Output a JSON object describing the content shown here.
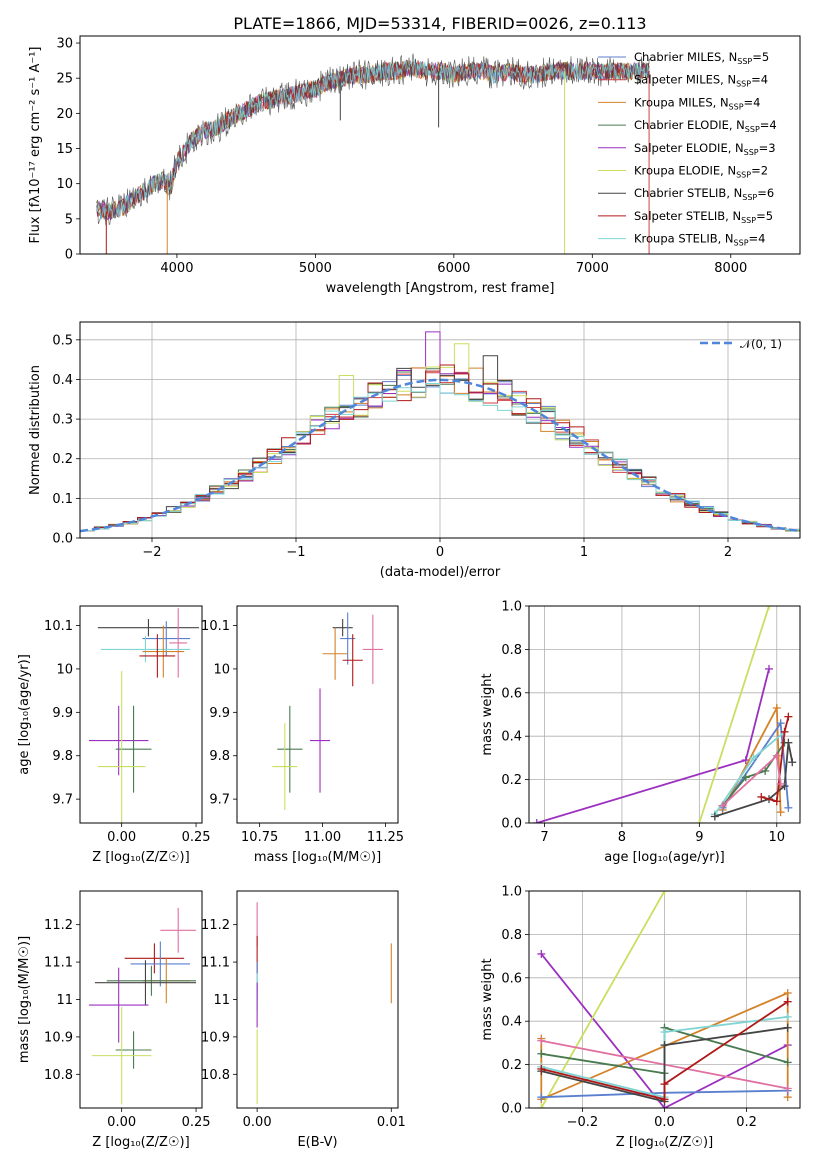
{
  "figure": {
    "title": "PLATE=1866, MJD=53314, FIBERID=0026, z=0.113"
  },
  "colors": {
    "chabrier_miles": "#5b7fcf",
    "salpeter_miles": "#d04040",
    "kroupa_miles": "#d4822a",
    "chabrier_elodie": "#4a7a50",
    "salpeter_elodie": "#9b30c0",
    "kroupa_elodie": "#c8e060",
    "chabrier_stelib": "#444444",
    "salpeter_stelib": "#b01818",
    "kroupa_stelib": "#7fd4d4",
    "pink": "#e070a0",
    "norm": "#4f86d9"
  },
  "legend_spectrum": [
    {
      "key": "chabrier_miles",
      "name": "Chabrier MILES, N",
      "sub": "SSP",
      "tail": "=5"
    },
    {
      "key": "salpeter_miles",
      "name": "Salpeter MILES, N",
      "sub": "SSP",
      "tail": "=4"
    },
    {
      "key": "kroupa_miles",
      "name": "Kroupa MILES, N",
      "sub": "SSP",
      "tail": "=4"
    },
    {
      "key": "chabrier_elodie",
      "name": "Chabrier ELODIE, N",
      "sub": "SSP",
      "tail": "=4"
    },
    {
      "key": "salpeter_elodie",
      "name": "Salpeter ELODIE, N",
      "sub": "SSP",
      "tail": "=3"
    },
    {
      "key": "kroupa_elodie",
      "name": "Kroupa ELODIE, N",
      "sub": "SSP",
      "tail": "=2"
    },
    {
      "key": "chabrier_stelib",
      "name": "Chabrier STELIB, N",
      "sub": "SSP",
      "tail": "=6"
    },
    {
      "key": "salpeter_stelib",
      "name": "Salpeter STELIB, N",
      "sub": "SSP",
      "tail": "=5"
    },
    {
      "key": "kroupa_stelib",
      "name": "Kroupa STELIB, N",
      "sub": "SSP",
      "tail": "=4"
    }
  ],
  "legend_hist": {
    "label": "𝒩(0, 1)"
  },
  "chart_data": [
    {
      "id": "spectrum",
      "type": "line",
      "xlabel": "wavelength [Angstrom, rest frame]",
      "ylabel": "Flux [fλ10⁻¹⁷ erg cm⁻² s⁻¹ A⁻¹]",
      "xlim": [
        3300,
        8500
      ],
      "ylim": [
        0,
        31
      ],
      "xticks": [
        4000,
        5000,
        6000,
        7000,
        8000
      ],
      "yticks": [
        0,
        5,
        10,
        15,
        20,
        25,
        30
      ],
      "grid": false,
      "legend": "top-right",
      "envelope": {
        "x": [
          3420,
          3500,
          3600,
          3700,
          3800,
          3900,
          3950,
          4000,
          4100,
          4200,
          4300,
          4400,
          4500,
          4600,
          4700,
          4800,
          4900,
          5000,
          5100,
          5200,
          5300,
          5400,
          5500,
          5600,
          5700,
          5800,
          5900,
          6000,
          6100,
          6200,
          6300,
          6400,
          6500,
          6600,
          6700,
          6800,
          6900,
          7000,
          7100,
          7200,
          7300,
          7400,
          7420
        ],
        "y": [
          6.5,
          6.0,
          6.5,
          8.0,
          9.5,
          10.5,
          9.5,
          13.0,
          16.0,
          17.5,
          18.0,
          19.5,
          20.5,
          21.5,
          22.0,
          22.5,
          23.0,
          23.5,
          24.5,
          25.0,
          25.5,
          25.5,
          26.0,
          26.0,
          26.5,
          26.0,
          26.0,
          25.5,
          26.0,
          26.0,
          25.5,
          26.0,
          25.5,
          25.5,
          26.0,
          26.0,
          26.0,
          26.0,
          26.0,
          26.0,
          26.0,
          26.0,
          26.0
        ]
      },
      "absorption_dips": [
        {
          "x": 3490,
          "y": 0,
          "series": "salpeter_stelib"
        },
        {
          "x": 3930,
          "y": 0,
          "series": "kroupa_miles"
        },
        {
          "x": 5180,
          "y": 19,
          "series": "chabrier_stelib"
        },
        {
          "x": 5890,
          "y": 18,
          "series": "chabrier_stelib"
        },
        {
          "x": 6800,
          "y": 0,
          "series": "kroupa_elodie"
        },
        {
          "x": 7410,
          "y": 0,
          "series": "salpeter_miles"
        }
      ]
    },
    {
      "id": "residual-histogram",
      "type": "bar",
      "xlabel": "(data-model)/error",
      "ylabel": "Normed distribution",
      "xlim": [
        -2.5,
        2.5
      ],
      "ylim": [
        0,
        0.545
      ],
      "xticks": [
        -2,
        -1,
        0,
        1,
        2
      ],
      "yticks": [
        0.0,
        0.1,
        0.2,
        0.3,
        0.4,
        0.5
      ],
      "grid": true,
      "legend": "top-right",
      "bin_width": 0.1,
      "bin_start": -2.5,
      "series": [
        {
          "key": "chabrier_miles",
          "seed": 11
        },
        {
          "key": "salpeter_miles",
          "seed": 23
        },
        {
          "key": "kroupa_miles",
          "seed": 37
        },
        {
          "key": "chabrier_elodie",
          "seed": 41
        },
        {
          "key": "salpeter_elodie",
          "seed": 53
        },
        {
          "key": "kroupa_elodie",
          "seed": 67
        },
        {
          "key": "chabrier_stelib",
          "seed": 71
        },
        {
          "key": "salpeter_stelib",
          "seed": 83
        },
        {
          "key": "kroupa_stelib",
          "seed": 97
        }
      ],
      "highlights": [
        {
          "x": -0.05,
          "y": 0.52,
          "series": "salpeter_elodie"
        },
        {
          "x": 0.15,
          "y": 0.49,
          "series": "kroupa_elodie"
        },
        {
          "x": 0.35,
          "y": 0.46,
          "series": "chabrier_stelib"
        },
        {
          "x": -0.65,
          "y": 0.41,
          "series": "kroupa_elodie"
        }
      ]
    },
    {
      "id": "age-vs-Z",
      "type": "scatter",
      "xlabel": "Z [log₁₀(Z/Z☉)]",
      "ylabel": "age  [log₁₀(age/yr)]",
      "xlim": [
        -0.14,
        0.27
      ],
      "ylim": [
        9.645,
        10.145
      ],
      "xticks": [
        0.0,
        0.25
      ],
      "xtick_labels": [
        "0.00",
        "0.25"
      ],
      "yticks": [
        9.7,
        9.8,
        9.9,
        10.0,
        10.1
      ],
      "grid": false,
      "points": [
        {
          "series": "chabrier_stelib",
          "x": 0.09,
          "y": 10.095,
          "xerr": 0.17,
          "yerr": 0.02
        },
        {
          "series": "chabrier_miles",
          "x": 0.15,
          "y": 10.07,
          "xerr": 0.08,
          "yerr": 0.04
        },
        {
          "series": "pink",
          "x": 0.19,
          "y": 10.06,
          "xerr": 0.03,
          "yerr": 0.08
        },
        {
          "series": "kroupa_stelib",
          "x": 0.08,
          "y": 10.045,
          "xerr": 0.15,
          "yerr": 0.03
        },
        {
          "series": "kroupa_miles",
          "x": 0.14,
          "y": 10.04,
          "xerr": 0.07,
          "yerr": 0.06
        },
        {
          "series": "salpeter_stelib",
          "x": 0.12,
          "y": 10.03,
          "xerr": 0.06,
          "yerr": 0.05
        },
        {
          "series": "salpeter_elodie",
          "x": -0.01,
          "y": 9.835,
          "xerr": 0.1,
          "yerr": 0.08
        },
        {
          "series": "chabrier_elodie",
          "x": 0.04,
          "y": 9.815,
          "xerr": 0.06,
          "yerr": 0.1
        },
        {
          "series": "kroupa_elodie",
          "x": 0.0,
          "y": 9.775,
          "xerr": 0.08,
          "yerr": 0.22
        }
      ]
    },
    {
      "id": "age-vs-mass",
      "type": "scatter",
      "xlabel": "mass [log₁₀(M/M☉)]",
      "ylabel": "",
      "xlim": [
        10.66,
        11.3
      ],
      "ylim": [
        9.645,
        10.145
      ],
      "xticks": [
        10.75,
        11.0,
        11.25
      ],
      "xtick_labels": [
        "10.75",
        "11.00",
        "11.25"
      ],
      "yticks": [
        9.7,
        9.8,
        9.9,
        10.0,
        10.1
      ],
      "grid": false,
      "points": [
        {
          "series": "chabrier_stelib",
          "x": 11.08,
          "y": 10.095,
          "xerr": 0.04,
          "yerr": 0.02
        },
        {
          "series": "chabrier_miles",
          "x": 11.1,
          "y": 10.07,
          "xerr": 0.03,
          "yerr": 0.06
        },
        {
          "series": "pink",
          "x": 11.2,
          "y": 10.045,
          "xerr": 0.04,
          "yerr": 0.08
        },
        {
          "series": "kroupa_miles",
          "x": 11.05,
          "y": 10.035,
          "xerr": 0.05,
          "yerr": 0.06
        },
        {
          "series": "salpeter_stelib",
          "x": 11.12,
          "y": 10.02,
          "xerr": 0.04,
          "yerr": 0.06
        },
        {
          "series": "salpeter_elodie",
          "x": 10.99,
          "y": 9.835,
          "xerr": 0.04,
          "yerr": 0.12
        },
        {
          "series": "chabrier_elodie",
          "x": 10.87,
          "y": 9.815,
          "xerr": 0.05,
          "yerr": 0.1
        },
        {
          "series": "kroupa_elodie",
          "x": 10.85,
          "y": 9.775,
          "xerr": 0.05,
          "yerr": 0.1
        }
      ]
    },
    {
      "id": "weight-vs-age",
      "type": "line",
      "xlabel": "age  [log₁₀(age/yr)]",
      "ylabel": "mass weight",
      "xlim": [
        6.8,
        10.3
      ],
      "ylim": [
        0,
        1
      ],
      "xticks": [
        7,
        8,
        9,
        10
      ],
      "yticks": [
        0.0,
        0.2,
        0.4,
        0.6,
        0.8,
        1.0
      ],
      "grid": true,
      "series": [
        {
          "key": "salpeter_elodie",
          "x": [
            6.9,
            9.6,
            9.9
          ],
          "y": [
            0.0,
            0.29,
            0.71
          ]
        },
        {
          "key": "kroupa_elodie",
          "x": [
            9.0,
            9.9
          ],
          "y": [
            0.0,
            1.0
          ]
        },
        {
          "key": "kroupa_miles",
          "x": [
            9.3,
            10.0,
            10.05
          ],
          "y": [
            0.06,
            0.53,
            0.05
          ]
        },
        {
          "key": "chabrier_miles",
          "x": [
            9.3,
            10.05,
            10.15
          ],
          "y": [
            0.07,
            0.46,
            0.07
          ]
        },
        {
          "key": "kroupa_stelib",
          "x": [
            9.2,
            9.7,
            10.1
          ],
          "y": [
            0.04,
            0.3,
            0.42
          ]
        },
        {
          "key": "chabrier_elodie",
          "x": [
            9.3,
            9.6,
            9.85,
            10.1
          ],
          "y": [
            0.08,
            0.21,
            0.24,
            0.37
          ]
        },
        {
          "key": "chabrier_stelib",
          "x": [
            9.2,
            9.9,
            10.1,
            10.15,
            10.2
          ],
          "y": [
            0.03,
            0.11,
            0.17,
            0.37,
            0.28
          ]
        },
        {
          "key": "salpeter_stelib",
          "x": [
            9.8,
            10.0,
            10.1,
            10.15
          ],
          "y": [
            0.12,
            0.1,
            0.42,
            0.49
          ]
        },
        {
          "key": "pink",
          "x": [
            9.3,
            10.0,
            10.05
          ],
          "y": [
            0.08,
            0.31,
            0.18
          ]
        }
      ]
    },
    {
      "id": "mass-vs-Z",
      "type": "scatter",
      "xlabel": "Z [log₁₀(Z/Z☉)]",
      "ylabel": "mass [log₁₀(M/M☉)]",
      "xlim": [
        -0.14,
        0.27
      ],
      "ylim": [
        10.71,
        11.29
      ],
      "xticks": [
        0.0,
        0.25
      ],
      "xtick_labels": [
        "0.00",
        "0.25"
      ],
      "yticks": [
        10.8,
        10.9,
        11.0,
        11.1,
        11.2
      ],
      "grid": false,
      "points": [
        {
          "series": "pink",
          "x": 0.19,
          "y": 11.185,
          "xerr": 0.06,
          "yerr": 0.06
        },
        {
          "series": "salpeter_stelib",
          "x": 0.11,
          "y": 11.11,
          "xerr": 0.1,
          "yerr": 0.04
        },
        {
          "series": "chabrier_miles",
          "x": 0.13,
          "y": 11.095,
          "xerr": 0.1,
          "yerr": 0.06
        },
        {
          "series": "kroupa_miles",
          "x": 0.15,
          "y": 11.05,
          "xerr": 0.08,
          "yerr": 0.06
        },
        {
          "series": "chabrier_elodie",
          "x": 0.1,
          "y": 11.05,
          "xerr": 0.15,
          "yerr": 0.04
        },
        {
          "series": "chabrier_stelib",
          "x": 0.08,
          "y": 11.045,
          "xerr": 0.17,
          "yerr": 0.06
        },
        {
          "series": "salpeter_elodie",
          "x": -0.01,
          "y": 10.985,
          "xerr": 0.1,
          "yerr": 0.1
        },
        {
          "series": "chabrier_elodie",
          "x": 0.04,
          "y": 10.865,
          "xerr": 0.06,
          "yerr": 0.05
        },
        {
          "series": "kroupa_elodie",
          "x": 0.0,
          "y": 10.85,
          "xerr": 0.1,
          "yerr": 0.13
        }
      ]
    },
    {
      "id": "mass-vs-ebv",
      "type": "scatter",
      "xlabel": "E(B-V)",
      "ylabel": "",
      "xlim": [
        -0.0015,
        0.0105
      ],
      "ylim": [
        10.71,
        11.29
      ],
      "xticks": [
        0.0,
        0.01
      ],
      "xtick_labels": [
        "0.00",
        "0.01"
      ],
      "yticks": [
        10.8,
        10.9,
        11.0,
        11.1,
        11.2
      ],
      "grid": false,
      "points": [
        {
          "series": "pink",
          "x": 0.0,
          "y": 11.2,
          "xerr": 0.0,
          "yerr": 0.06
        },
        {
          "series": "salpeter_stelib",
          "x": 0.0,
          "y": 11.12,
          "xerr": 0.0,
          "yerr": 0.05
        },
        {
          "series": "chabrier_miles",
          "x": 0.0,
          "y": 11.05,
          "xerr": 0.0,
          "yerr": 0.05
        },
        {
          "series": "kroupa_stelib",
          "x": 0.0,
          "y": 11.02,
          "xerr": 0.0,
          "yerr": 0.05
        },
        {
          "series": "salpeter_elodie",
          "x": 0.0,
          "y": 10.985,
          "xerr": 0.0,
          "yerr": 0.06
        },
        {
          "series": "kroupa_elodie",
          "x": 0.0,
          "y": 10.82,
          "xerr": 0.0,
          "yerr": 0.1
        },
        {
          "series": "kroupa_miles",
          "x": 0.01,
          "y": 11.07,
          "xerr": 0.0,
          "yerr": 0.08
        }
      ]
    },
    {
      "id": "weight-vs-Z",
      "type": "line",
      "xlabel": "Z [log₁₀(Z/Z☉)]",
      "ylabel": "mass weight",
      "xlim": [
        -0.33,
        0.33
      ],
      "ylim": [
        0,
        1
      ],
      "xticks": [
        -0.2,
        0.0,
        0.2
      ],
      "xtick_labels": [
        "−0.2",
        "0.0",
        "0.2"
      ],
      "yticks": [
        0.0,
        0.2,
        0.4,
        0.6,
        0.8,
        1.0
      ],
      "grid": true,
      "series": [
        {
          "key": "salpeter_elodie",
          "x": [
            -0.3,
            0.0,
            0.3
          ],
          "y": [
            0.71,
            0.0,
            0.29
          ]
        },
        {
          "key": "kroupa_elodie",
          "x": [
            -0.3,
            0.0
          ],
          "y": [
            0.0,
            1.0
          ]
        },
        {
          "key": "kroupa_miles",
          "x": [
            -0.3,
            -0.3,
            0.3,
            0.3
          ],
          "y": [
            0.32,
            0.04,
            0.53,
            0.05
          ]
        },
        {
          "key": "chabrier_miles",
          "x": [
            -0.3,
            0.0,
            0.3
          ],
          "y": [
            0.05,
            0.07,
            0.08
          ]
        },
        {
          "key": "pink",
          "x": [
            -0.3,
            0.3
          ],
          "y": [
            0.31,
            0.09
          ]
        },
        {
          "key": "chabrier_elodie",
          "x": [
            -0.3,
            0.0,
            0.0,
            0.3
          ],
          "y": [
            0.25,
            0.16,
            0.37,
            0.21
          ]
        },
        {
          "key": "kroupa_stelib",
          "x": [
            -0.3,
            0.0,
            0.0,
            0.3
          ],
          "y": [
            0.19,
            0.05,
            0.35,
            0.42
          ]
        },
        {
          "key": "chabrier_stelib",
          "x": [
            -0.3,
            0.0,
            0.0,
            0.3
          ],
          "y": [
            0.17,
            0.03,
            0.29,
            0.37
          ]
        },
        {
          "key": "salpeter_stelib",
          "x": [
            -0.3,
            0.0,
            0.0,
            0.3
          ],
          "y": [
            0.18,
            0.04,
            0.11,
            0.49
          ]
        }
      ]
    }
  ]
}
